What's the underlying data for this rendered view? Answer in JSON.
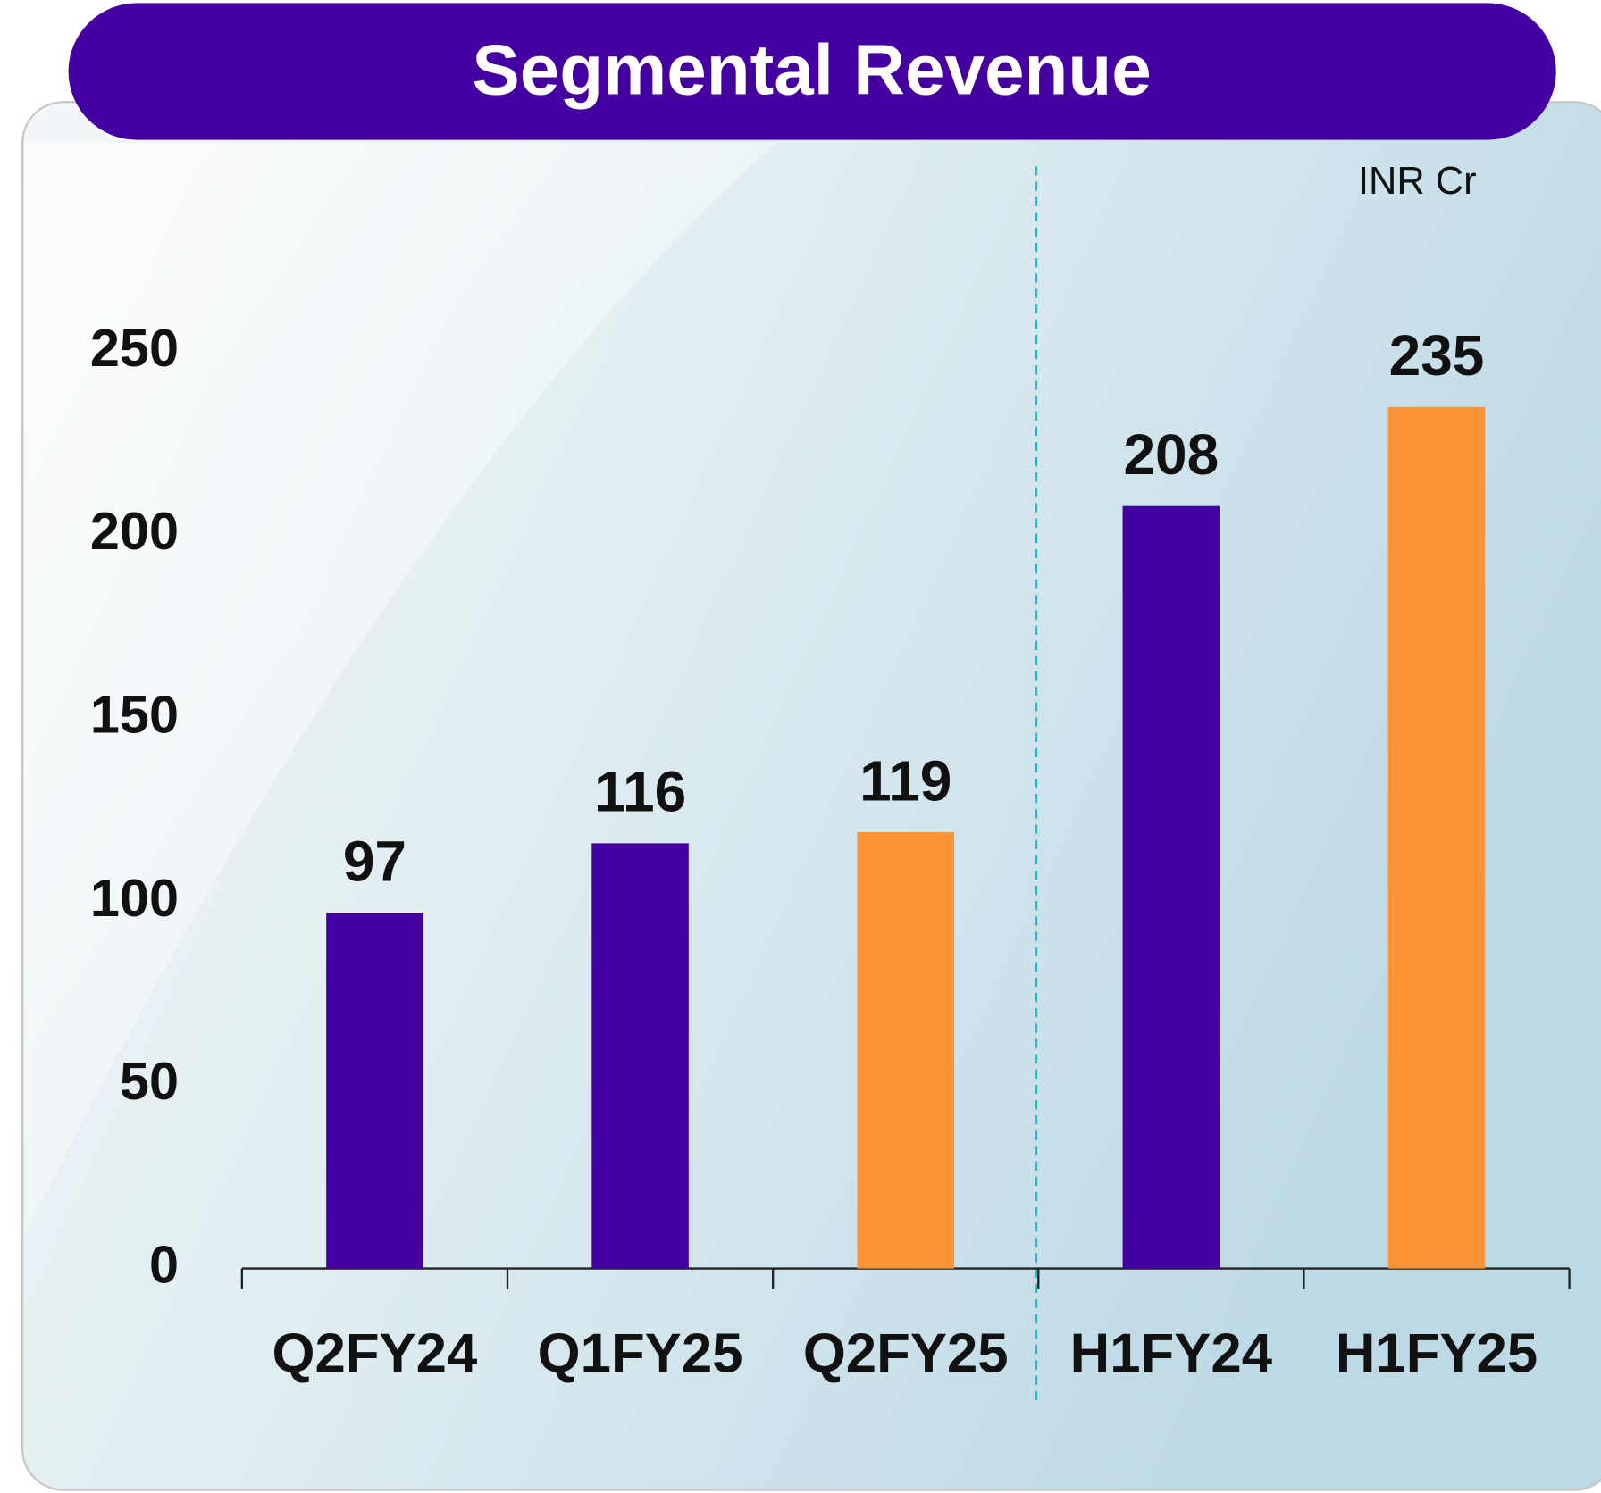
{
  "chart_data": {
    "type": "bar",
    "title": "Segmental Revenue",
    "unit_label": "INR Cr",
    "categories": [
      "Q2FY24",
      "Q1FY25",
      "Q2FY25",
      "H1FY24",
      "H1FY25"
    ],
    "values": [
      97,
      116,
      119,
      208,
      235
    ],
    "colors": [
      "#4400a0",
      "#4400a0",
      "#ff9436",
      "#4400a0",
      "#ff9436"
    ],
    "ylim": [
      0,
      250
    ],
    "yticks": [
      0,
      50,
      100,
      150,
      200,
      250
    ],
    "grid": false
  }
}
